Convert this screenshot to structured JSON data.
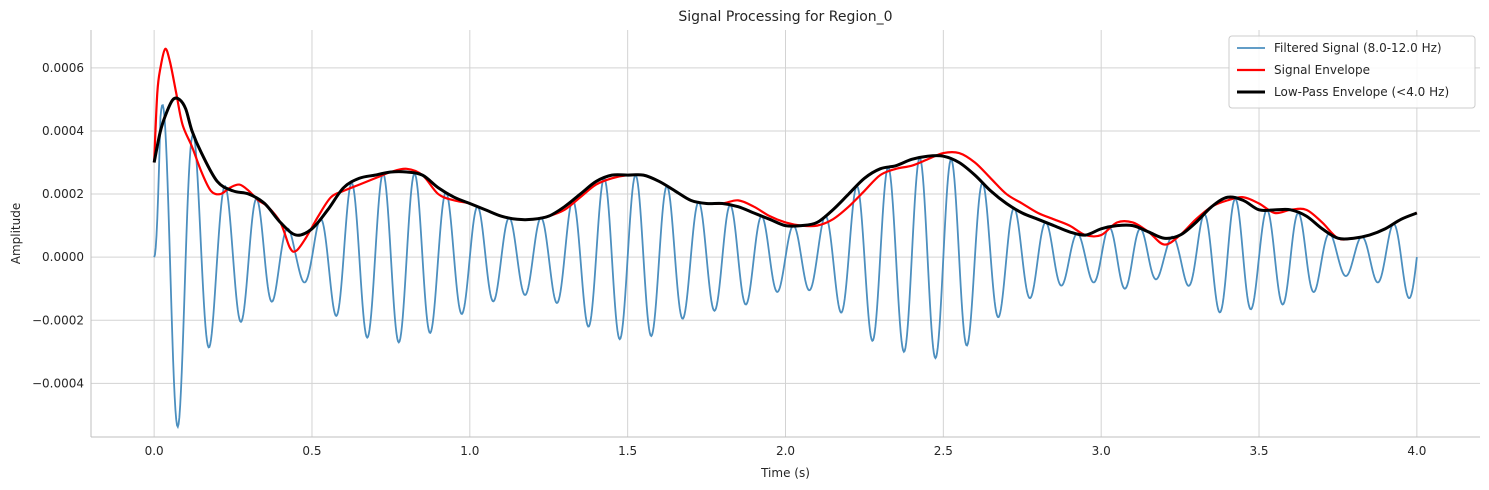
{
  "chart_data": {
    "type": "line",
    "title": "Signal Processing for Region_0",
    "xlabel": "Time (s)",
    "ylabel": "Amplitude",
    "xlim": [
      -0.2,
      4.2
    ],
    "ylim": [
      -0.00057,
      0.00072
    ],
    "xticks": [
      0.0,
      0.5,
      1.0,
      1.5,
      2.0,
      2.5,
      3.0,
      3.5,
      4.0
    ],
    "xtick_labels": [
      "0.0",
      "0.5",
      "1.0",
      "1.5",
      "2.0",
      "2.5",
      "3.0",
      "3.5",
      "4.0"
    ],
    "yticks": [
      -0.0004,
      -0.0002,
      0.0,
      0.0002,
      0.0004,
      0.0006
    ],
    "ytick_labels": [
      "−0.0004",
      "−0.0002",
      "0.0000",
      "0.0002",
      "0.0004",
      "0.0006"
    ],
    "grid": true,
    "legend_position": "top-right",
    "series": [
      {
        "name": "Filtered Signal (8.0-12.0 Hz)",
        "color": "#4c8fbf",
        "kind": "oscillation",
        "frequency_hz": 10,
        "sample_rate_hz": 100,
        "duration_s": 4.0,
        "envelope_ref": "lowpass"
      },
      {
        "name": "Signal Envelope",
        "color": "#ff0000",
        "x": [
          0.0,
          0.01,
          0.02,
          0.035,
          0.05,
          0.07,
          0.09,
          0.12,
          0.15,
          0.18,
          0.21,
          0.24,
          0.27,
          0.3,
          0.33,
          0.36,
          0.4,
          0.43,
          0.45,
          0.48,
          0.52,
          0.56,
          0.6,
          0.65,
          0.7,
          0.75,
          0.8,
          0.85,
          0.9,
          0.95,
          1.0,
          1.05,
          1.1,
          1.15,
          1.2,
          1.25,
          1.3,
          1.35,
          1.4,
          1.45,
          1.5,
          1.55,
          1.6,
          1.65,
          1.7,
          1.75,
          1.8,
          1.85,
          1.9,
          1.95,
          2.0,
          2.05,
          2.1,
          2.15,
          2.2,
          2.25,
          2.3,
          2.35,
          2.4,
          2.45,
          2.5,
          2.55,
          2.6,
          2.65,
          2.7,
          2.75,
          2.8,
          2.85,
          2.9,
          2.95,
          3.0,
          3.05,
          3.1,
          3.15,
          3.2,
          3.25,
          3.3,
          3.35,
          3.4,
          3.45,
          3.5,
          3.55,
          3.6,
          3.65,
          3.7,
          3.75,
          3.8,
          3.85,
          3.9,
          3.95,
          4.0
        ],
        "y": [
          0.0003,
          0.00052,
          0.0006,
          0.00066,
          0.00062,
          0.00052,
          0.00042,
          0.00035,
          0.00027,
          0.00021,
          0.0002,
          0.00022,
          0.00023,
          0.00021,
          0.00018,
          0.00016,
          0.00011,
          3e-05,
          2e-05,
          6e-05,
          0.00013,
          0.00019,
          0.00021,
          0.00023,
          0.00025,
          0.00027,
          0.00028,
          0.00026,
          0.0002,
          0.00018,
          0.00017,
          0.00015,
          0.00013,
          0.00012,
          0.00012,
          0.00013,
          0.00015,
          0.00019,
          0.00023,
          0.00025,
          0.00026,
          0.00026,
          0.00024,
          0.00021,
          0.00018,
          0.00017,
          0.00017,
          0.00018,
          0.00016,
          0.00013,
          0.00011,
          0.0001,
          0.0001,
          0.00012,
          0.00016,
          0.00021,
          0.00026,
          0.00028,
          0.00029,
          0.00031,
          0.00033,
          0.00033,
          0.0003,
          0.00025,
          0.0002,
          0.00017,
          0.00014,
          0.00012,
          0.0001,
          7e-05,
          7e-05,
          0.00011,
          0.00011,
          8e-05,
          4e-05,
          7e-05,
          0.00012,
          0.00016,
          0.00018,
          0.00019,
          0.00017,
          0.00014,
          0.00015,
          0.00015,
          0.00011,
          6e-05,
          6e-05,
          7e-05,
          9e-05,
          0.00012,
          0.00014
        ]
      },
      {
        "name": "Low-Pass Envelope (<4.0 Hz)",
        "color": "#000000",
        "id": "lowpass",
        "x": [
          0.0,
          0.02,
          0.04,
          0.06,
          0.08,
          0.1,
          0.12,
          0.15,
          0.2,
          0.25,
          0.3,
          0.35,
          0.4,
          0.45,
          0.5,
          0.55,
          0.6,
          0.65,
          0.7,
          0.75,
          0.8,
          0.85,
          0.9,
          0.95,
          1.0,
          1.05,
          1.1,
          1.15,
          1.2,
          1.25,
          1.3,
          1.35,
          1.4,
          1.45,
          1.5,
          1.55,
          1.6,
          1.65,
          1.7,
          1.75,
          1.8,
          1.85,
          1.9,
          1.95,
          2.0,
          2.05,
          2.1,
          2.15,
          2.2,
          2.25,
          2.3,
          2.35,
          2.4,
          2.45,
          2.5,
          2.55,
          2.6,
          2.65,
          2.7,
          2.75,
          2.8,
          2.85,
          2.9,
          2.95,
          3.0,
          3.05,
          3.1,
          3.15,
          3.2,
          3.25,
          3.3,
          3.35,
          3.4,
          3.45,
          3.5,
          3.55,
          3.6,
          3.65,
          3.7,
          3.75,
          3.8,
          3.85,
          3.9,
          3.95,
          4.0
        ],
        "y": [
          0.0003,
          0.0004,
          0.00046,
          0.0005,
          0.0005,
          0.00047,
          0.0004,
          0.00033,
          0.00024,
          0.00021,
          0.0002,
          0.00017,
          0.00011,
          7e-05,
          9e-05,
          0.00015,
          0.00022,
          0.00025,
          0.00026,
          0.00027,
          0.00027,
          0.00026,
          0.00022,
          0.00019,
          0.00017,
          0.00015,
          0.00013,
          0.00012,
          0.00012,
          0.00013,
          0.00016,
          0.0002,
          0.00024,
          0.00026,
          0.00026,
          0.00026,
          0.00024,
          0.00021,
          0.00018,
          0.00017,
          0.00017,
          0.00016,
          0.00014,
          0.00012,
          0.0001,
          0.0001,
          0.00011,
          0.00015,
          0.0002,
          0.00025,
          0.00028,
          0.00029,
          0.00031,
          0.00032,
          0.00032,
          0.0003,
          0.00026,
          0.00021,
          0.00017,
          0.00014,
          0.00012,
          0.0001,
          8e-05,
          7e-05,
          9e-05,
          0.0001,
          0.0001,
          8e-05,
          6e-05,
          7e-05,
          0.00011,
          0.00016,
          0.00019,
          0.00018,
          0.00015,
          0.00015,
          0.00015,
          0.00013,
          9e-05,
          6e-05,
          6e-05,
          7e-05,
          9e-05,
          0.00012,
          0.00014
        ]
      }
    ]
  }
}
